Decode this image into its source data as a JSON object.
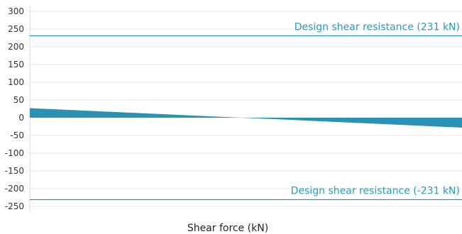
{
  "chart_data": {
    "type": "area",
    "title": "",
    "xlabel": "Shear force (kN)",
    "ylabel": "",
    "ylim": [
      -250,
      300
    ],
    "yticks": [
      300,
      250,
      200,
      150,
      100,
      50,
      0,
      -50,
      -100,
      -150,
      -200,
      -250
    ],
    "grid": true,
    "x": [
      0,
      1
    ],
    "series": [
      {
        "values": [
          27,
          -28
        ]
      }
    ],
    "reference_lines": [
      {
        "value": 231,
        "label": "Design shear resistance (231 kN)"
      },
      {
        "value": -231,
        "label": "Design shear resistance (-231 kN)"
      }
    ],
    "colors": {
      "fill": "#2a93b3",
      "reference_line": "#2a9ab8",
      "reference_label": "#2a9ab8",
      "grid": "#e6e6e6"
    }
  }
}
